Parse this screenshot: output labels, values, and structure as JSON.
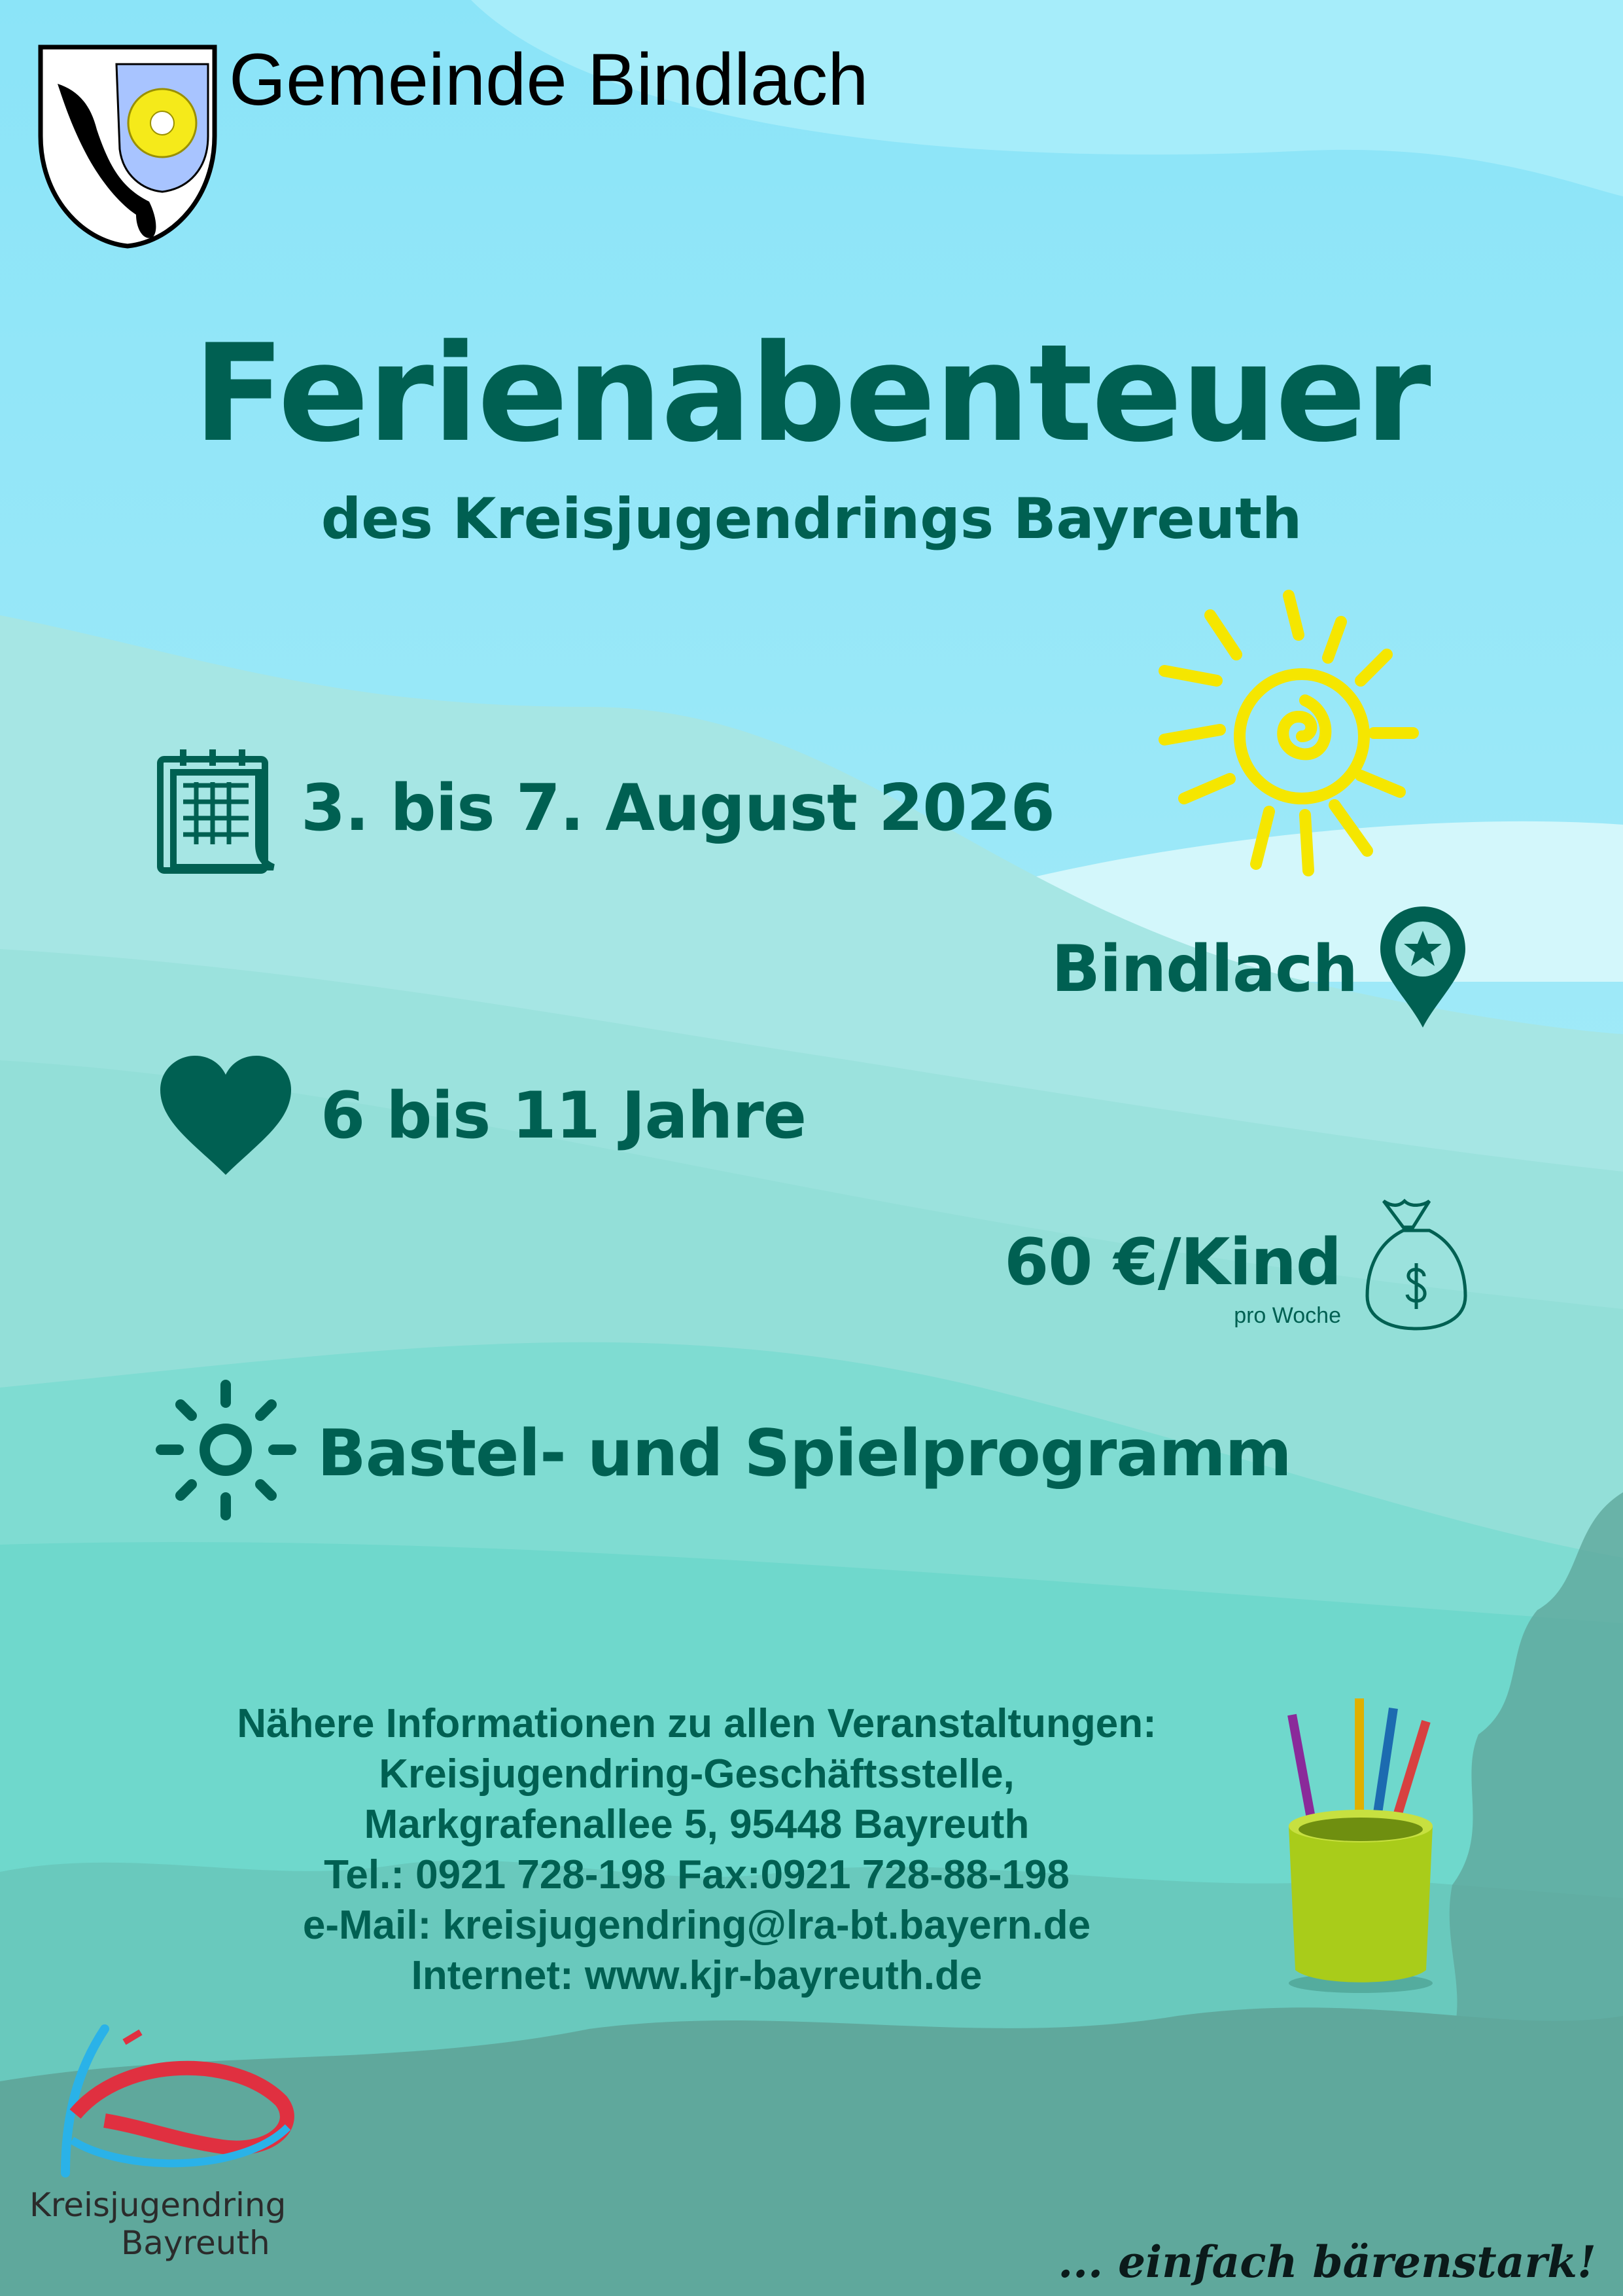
{
  "header": {
    "municipality": "Gemeinde Bindlach"
  },
  "title": "Ferienabenteuer",
  "subtitle": "des Kreisjugendrings Bayreuth",
  "details": {
    "date": "3. bis 7. August 2026",
    "location": "Bindlach",
    "age": "6 bis 11 Jahre",
    "price": "60 €/Kind",
    "price_note": "pro Woche",
    "program": "Bastel- und Spielprogramm"
  },
  "contact": {
    "lines": [
      "Nähere Informationen zu allen Veranstaltungen:",
      "Kreisjugendring-Geschäftsstelle,",
      "Markgrafenallee 5, 95448 Bayreuth",
      "Tel.: 0921 728-198   Fax:0921 728-88-198",
      "e-Mail: kreisjugendring@lra-bt.bayern.de",
      "Internet: www.kjr-bayreuth.de"
    ]
  },
  "footer": {
    "logo_line1": "Kreisjugendring",
    "logo_line2": "Bayreuth",
    "slogan": "... einfach bärenstark!"
  },
  "colors": {
    "text": "#006052",
    "sun": "#f5e600",
    "sky": "#8fe6f9",
    "hill": "#6fd8cc"
  },
  "icons": [
    "coat-of-arms",
    "calendar-icon",
    "sun-icon",
    "map-pin-star-icon",
    "heart-icon",
    "money-bag-icon",
    "sun-outline-icon",
    "pencil-cup-icon",
    "kjr-logo"
  ]
}
